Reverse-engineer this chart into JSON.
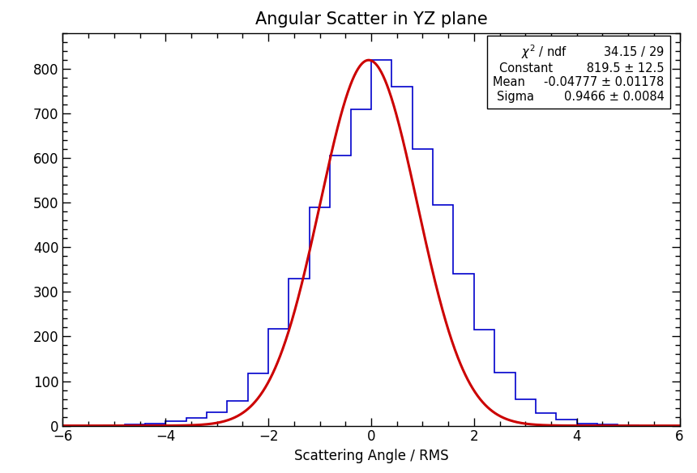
{
  "title": "Angular Scatter in YZ plane",
  "xlabel": "Scattering Angle / RMS",
  "xlim": [
    -6,
    6
  ],
  "ylim": [
    0,
    880
  ],
  "xticks": [
    -6,
    -4,
    -2,
    0,
    2,
    4,
    6
  ],
  "yticks": [
    0,
    100,
    200,
    300,
    400,
    500,
    600,
    700,
    800
  ],
  "hist_color": "#0000cc",
  "fit_color": "#cc0000",
  "fit_constant": 819.5,
  "fit_mean": -0.04777,
  "fit_sigma": 0.9466,
  "n_bins": 30,
  "x_range": [
    -6,
    6
  ],
  "hist_counts": [
    0,
    0,
    1,
    2,
    5,
    10,
    18,
    30,
    55,
    118,
    218,
    330,
    490,
    605,
    710,
    820,
    760,
    620,
    495,
    340,
    215,
    120,
    60,
    28,
    13,
    5,
    2,
    1,
    0,
    0
  ],
  "stat_box": {
    "chi2_ndf": "34.15 / 29",
    "constant": "819.5 ± 12.5",
    "mean": "-0.04777 ± 0.01178",
    "sigma": "0.9466 ± 0.0084"
  },
  "background_color": "#ffffff",
  "title_fontsize": 15,
  "axis_fontsize": 12,
  "tick_fontsize": 12
}
